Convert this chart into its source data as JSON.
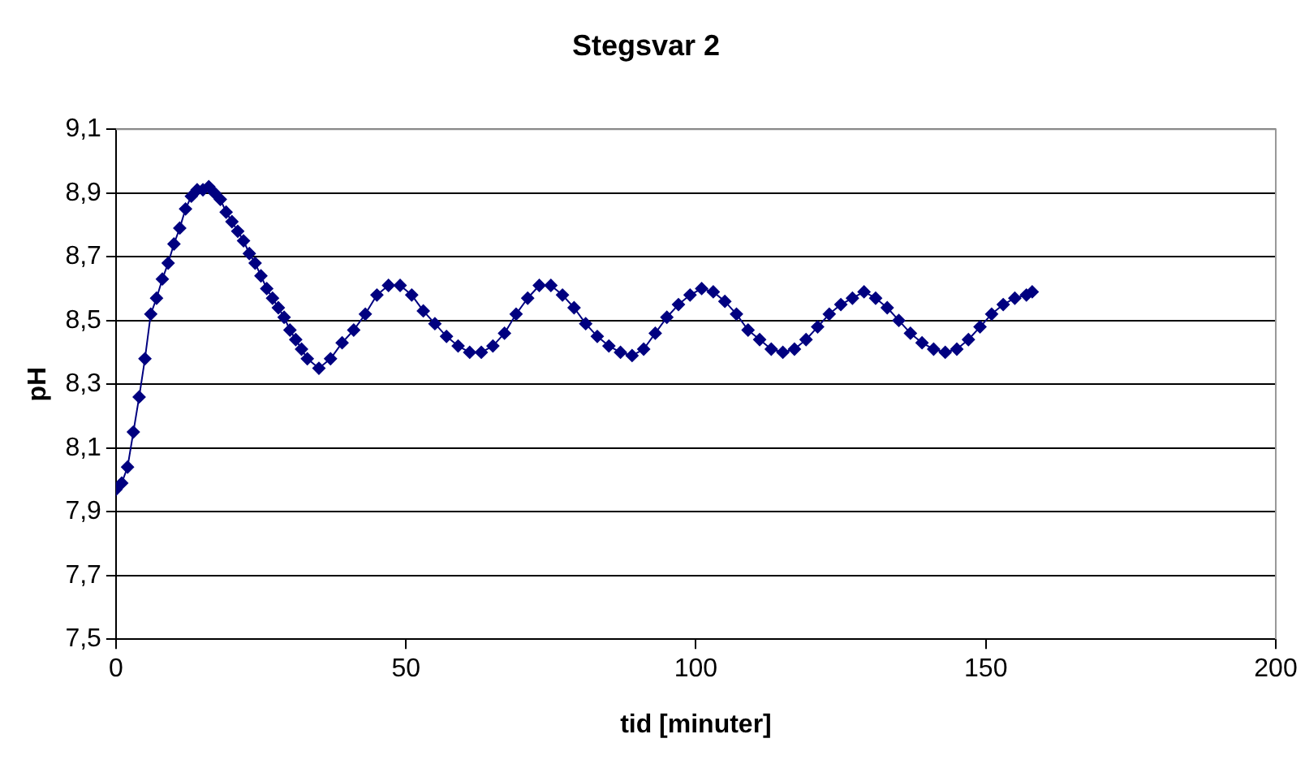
{
  "chart_data": {
    "type": "line",
    "title": "Stegsvar 2",
    "xlabel": "tid [minuter]",
    "ylabel": "pH",
    "marker": "diamond",
    "line_style": "solid",
    "grid": "y",
    "legend": false,
    "xlim": [
      0,
      200
    ],
    "xticks": [
      0,
      50,
      100,
      150,
      200
    ],
    "ylim": [
      7.5,
      9.1
    ],
    "yticks": [
      {
        "value": 7.5,
        "label": "7,5"
      },
      {
        "value": 7.7,
        "label": "7,7"
      },
      {
        "value": 7.9,
        "label": "7,9"
      },
      {
        "value": 8.1,
        "label": "8,1"
      },
      {
        "value": 8.3,
        "label": "8,3"
      },
      {
        "value": 8.5,
        "label": "8,5"
      },
      {
        "value": 8.7,
        "label": "8,7"
      },
      {
        "value": 8.9,
        "label": "8,9"
      },
      {
        "value": 9.1,
        "label": "9,1"
      }
    ],
    "x": [
      0,
      1,
      2,
      3,
      4,
      5,
      6,
      7,
      8,
      9,
      10,
      11,
      12,
      13,
      14,
      15,
      16,
      17,
      18,
      19,
      20,
      21,
      22,
      23,
      24,
      25,
      26,
      27,
      28,
      29,
      30,
      31,
      32,
      33,
      35,
      37,
      39,
      41,
      43,
      45,
      47,
      49,
      51,
      53,
      55,
      57,
      59,
      61,
      63,
      65,
      67,
      69,
      71,
      73,
      75,
      77,
      79,
      81,
      83,
      85,
      87,
      89,
      91,
      93,
      95,
      97,
      99,
      101,
      103,
      105,
      107,
      109,
      111,
      113,
      115,
      117,
      119,
      121,
      123,
      125,
      127,
      129,
      131,
      133,
      135,
      137,
      139,
      141,
      143,
      145,
      147,
      149,
      151,
      153,
      155,
      157,
      158
    ],
    "series": [
      {
        "color": "#000080",
        "values": [
          7.97,
          7.99,
          8.04,
          8.15,
          8.26,
          8.38,
          8.52,
          8.57,
          8.63,
          8.68,
          8.74,
          8.79,
          8.85,
          8.89,
          8.91,
          8.91,
          8.92,
          8.9,
          8.88,
          8.84,
          8.81,
          8.78,
          8.75,
          8.71,
          8.68,
          8.64,
          8.6,
          8.57,
          8.54,
          8.51,
          8.47,
          8.44,
          8.41,
          8.38,
          8.35,
          8.38,
          8.43,
          8.47,
          8.52,
          8.58,
          8.61,
          8.61,
          8.58,
          8.53,
          8.49,
          8.45,
          8.42,
          8.4,
          8.4,
          8.42,
          8.46,
          8.52,
          8.57,
          8.61,
          8.61,
          8.58,
          8.54,
          8.49,
          8.45,
          8.42,
          8.4,
          8.39,
          8.41,
          8.46,
          8.51,
          8.55,
          8.58,
          8.6,
          8.59,
          8.56,
          8.52,
          8.47,
          8.44,
          8.41,
          8.4,
          8.41,
          8.44,
          8.48,
          8.52,
          8.55,
          8.57,
          8.59,
          8.57,
          8.54,
          8.5,
          8.46,
          8.43,
          8.41,
          8.4,
          8.41,
          8.44,
          8.48,
          8.52,
          8.55,
          8.57,
          8.58,
          8.59
        ]
      }
    ]
  }
}
